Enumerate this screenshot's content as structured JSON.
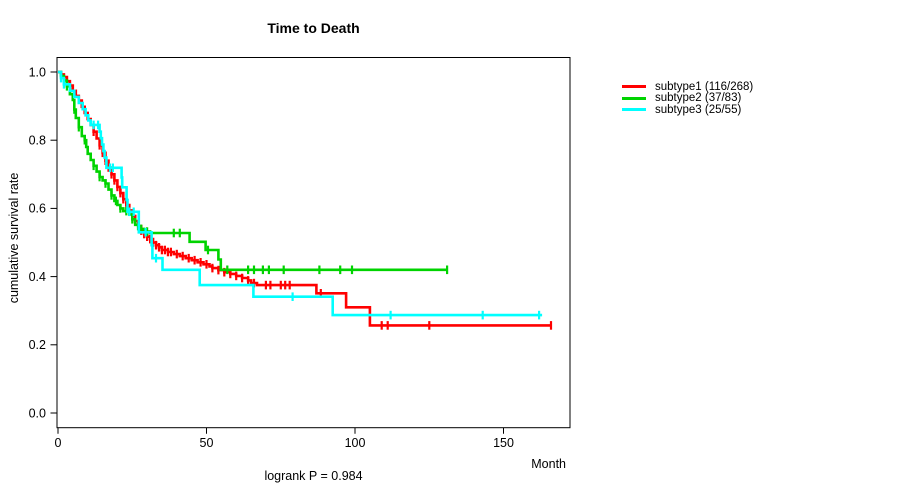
{
  "chart_data": {
    "type": "line",
    "subtype": "kaplan_meier_step_survival",
    "title": "Time to Death",
    "xlabel": "Month",
    "ylabel": "cumulative survival rate",
    "footnote": "logrank P = 0.984",
    "x_ticks": [
      0,
      50,
      100,
      150
    ],
    "y_ticks": [
      0.0,
      0.2,
      0.4,
      0.6,
      0.8,
      1.0
    ],
    "xlim": [
      0,
      172
    ],
    "ylim": [
      0,
      1.04
    ],
    "grid": false,
    "legend_position": "right-outside",
    "axis_color": "#000000",
    "series": [
      {
        "name": "subtype1 (116/268)",
        "color": "#ff0000",
        "steps": [
          [
            0,
            1.0
          ],
          [
            1,
            0.993
          ],
          [
            2,
            0.985
          ],
          [
            3,
            0.973
          ],
          [
            4,
            0.96
          ],
          [
            5,
            0.945
          ],
          [
            6,
            0.93
          ],
          [
            7,
            0.916
          ],
          [
            8,
            0.898
          ],
          [
            9,
            0.88
          ],
          [
            10,
            0.862
          ],
          [
            11,
            0.845
          ],
          [
            12,
            0.825
          ],
          [
            13,
            0.805
          ],
          [
            14,
            0.785
          ],
          [
            15,
            0.763
          ],
          [
            16,
            0.74
          ],
          [
            17,
            0.72
          ],
          [
            18,
            0.7
          ],
          [
            19,
            0.682
          ],
          [
            20,
            0.663
          ],
          [
            21,
            0.645
          ],
          [
            22,
            0.627
          ],
          [
            23,
            0.61
          ],
          [
            24,
            0.594
          ],
          [
            25,
            0.578
          ],
          [
            26,
            0.563
          ],
          [
            27,
            0.548
          ],
          [
            28,
            0.535
          ],
          [
            29,
            0.525
          ],
          [
            30,
            0.517
          ],
          [
            31,
            0.51
          ],
          [
            32,
            0.5
          ],
          [
            33,
            0.492
          ],
          [
            34,
            0.486
          ],
          [
            35,
            0.478
          ],
          [
            37,
            0.472
          ],
          [
            39,
            0.466
          ],
          [
            41,
            0.46
          ],
          [
            43,
            0.454
          ],
          [
            45,
            0.448
          ],
          [
            47,
            0.442
          ],
          [
            49,
            0.436
          ],
          [
            51,
            0.43
          ],
          [
            52,
            0.425
          ],
          [
            54,
            0.419
          ],
          [
            56,
            0.413
          ],
          [
            58,
            0.408
          ],
          [
            60,
            0.402
          ],
          [
            62,
            0.396
          ],
          [
            64,
            0.389
          ],
          [
            65,
            0.381
          ],
          [
            67,
            0.375
          ],
          [
            87,
            0.351
          ],
          [
            97,
            0.31
          ],
          [
            105,
            0.257
          ],
          [
            166,
            0.257
          ]
        ],
        "censor_months": [
          12,
          14,
          15,
          16,
          17,
          18,
          19,
          20,
          21,
          22,
          23,
          24,
          25,
          26,
          27,
          28,
          29,
          30,
          31,
          32,
          33,
          34,
          35,
          36,
          37,
          38,
          40,
          42,
          44,
          46,
          48,
          50,
          52,
          54,
          56,
          58,
          60,
          62,
          64,
          66,
          70,
          71.5,
          75,
          76.5,
          78,
          88.5,
          109,
          111,
          125,
          166
        ]
      },
      {
        "name": "subtype2 (37/83)",
        "color": "#00d300",
        "steps": [
          [
            0,
            1.0
          ],
          [
            1,
            0.988
          ],
          [
            2,
            0.975
          ],
          [
            3,
            0.958
          ],
          [
            4,
            0.935
          ],
          [
            5,
            0.918
          ],
          [
            5.5,
            0.89
          ],
          [
            6,
            0.865
          ],
          [
            7,
            0.838
          ],
          [
            8,
            0.812
          ],
          [
            9,
            0.8
          ],
          [
            9.5,
            0.78
          ],
          [
            10,
            0.76
          ],
          [
            11,
            0.742
          ],
          [
            12,
            0.725
          ],
          [
            13,
            0.708
          ],
          [
            14,
            0.692
          ],
          [
            15,
            0.682
          ],
          [
            16,
            0.673
          ],
          [
            17,
            0.655
          ],
          [
            18,
            0.638
          ],
          [
            19,
            0.622
          ],
          [
            20,
            0.61
          ],
          [
            21,
            0.6
          ],
          [
            22,
            0.592
          ],
          [
            24,
            0.582
          ],
          [
            25,
            0.568
          ],
          [
            26,
            0.552
          ],
          [
            27,
            0.54
          ],
          [
            29,
            0.532
          ],
          [
            31,
            0.528
          ],
          [
            44.3,
            0.502
          ],
          [
            49.7,
            0.478
          ],
          [
            54,
            0.45
          ],
          [
            54.8,
            0.42
          ],
          [
            131,
            0.42
          ]
        ],
        "censor_months": [
          3,
          5.5,
          7,
          9,
          12,
          14,
          16,
          18,
          19.5,
          21,
          23,
          25,
          28,
          30,
          39,
          41,
          50.5,
          57,
          64,
          66,
          69,
          71,
          76,
          88,
          95,
          99,
          131
        ]
      },
      {
        "name": "subtype3 (25/55)",
        "color": "#00ffff",
        "steps": [
          [
            0,
            1.0
          ],
          [
            1,
            0.982
          ],
          [
            2,
            0.964
          ],
          [
            4,
            0.945
          ],
          [
            5.5,
            0.927
          ],
          [
            7,
            0.909
          ],
          [
            8.3,
            0.891
          ],
          [
            9.3,
            0.873
          ],
          [
            10.2,
            0.858
          ],
          [
            11,
            0.845
          ],
          [
            14,
            0.825
          ],
          [
            14.4,
            0.806
          ],
          [
            14.8,
            0.787
          ],
          [
            15.3,
            0.768
          ],
          [
            15.7,
            0.749
          ],
          [
            16.3,
            0.719
          ],
          [
            21.4,
            0.691
          ],
          [
            21.6,
            0.662
          ],
          [
            23.1,
            0.625
          ],
          [
            23.4,
            0.59
          ],
          [
            27.2,
            0.53
          ],
          [
            31.5,
            0.492
          ],
          [
            31.8,
            0.454
          ],
          [
            35.2,
            0.42
          ],
          [
            47.7,
            0.375
          ],
          [
            65.8,
            0.341
          ],
          [
            92.5,
            0.287
          ],
          [
            163,
            0.287
          ]
        ],
        "censor_months": [
          1,
          2,
          12,
          13.5,
          17.5,
          18.5,
          24,
          25.5,
          29.5,
          33,
          79,
          112,
          143,
          162
        ]
      }
    ]
  }
}
